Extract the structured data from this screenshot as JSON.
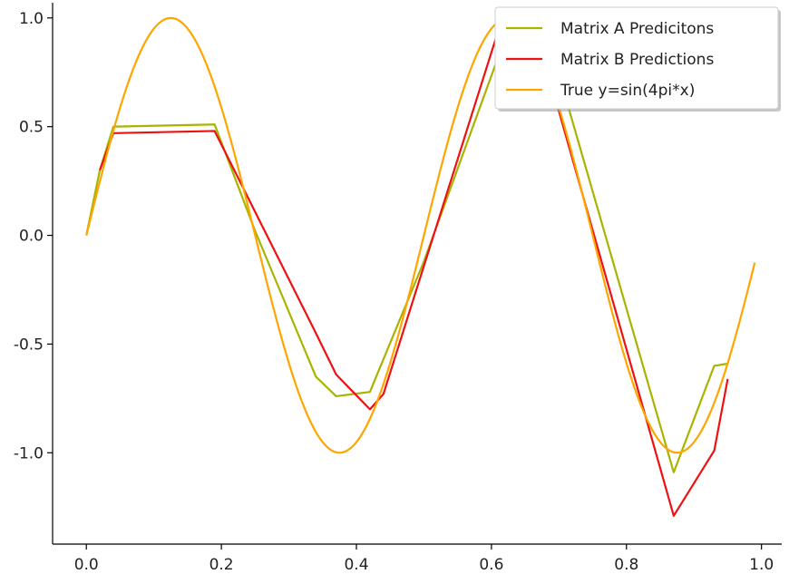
{
  "chart_data": {
    "type": "line",
    "title": "",
    "xlabel": "",
    "ylabel": "",
    "xlim": [
      -0.05,
      1.03
    ],
    "ylim": [
      -1.42,
      1.07
    ],
    "grid": false,
    "legend_placement": "top-right",
    "xticks": [
      0.0,
      0.2,
      0.4,
      0.6,
      0.8,
      1.0
    ],
    "xtick_labels": [
      "0.0",
      "0.2",
      "0.4",
      "0.6",
      "0.8",
      "1.0"
    ],
    "yticks": [
      1.0,
      0.5,
      0.0,
      -0.5,
      -1.0
    ],
    "ytick_labels": [
      "1.0",
      "0.5",
      "0.0",
      "-0.5",
      "-1.0"
    ],
    "series": [
      {
        "name": "Matrix A Predicitons",
        "color": "#a8b400",
        "x": [
          0.0,
          0.02,
          0.04,
          0.19,
          0.25,
          0.34,
          0.37,
          0.42,
          0.5,
          0.61,
          0.7,
          0.87,
          0.93,
          0.95
        ],
        "y": [
          0.0,
          0.3,
          0.5,
          0.51,
          0.02,
          -0.65,
          -0.74,
          -0.72,
          -0.12,
          0.82,
          0.74,
          -1.09,
          -0.6,
          -0.59
        ]
      },
      {
        "name": "Matrix B Predictions",
        "color": "#ee1111",
        "x": [
          0.02,
          0.04,
          0.19,
          0.34,
          0.37,
          0.42,
          0.44,
          0.61,
          0.69,
          0.87,
          0.93,
          0.95
        ],
        "y": [
          0.3,
          0.47,
          0.48,
          -0.45,
          -0.64,
          -0.8,
          -0.73,
          0.94,
          0.68,
          -1.29,
          -0.99,
          -0.66
        ]
      },
      {
        "name": "True y=sin(4pi*x)",
        "color": "#ffa500",
        "function": "sin(4*pi*x)",
        "x_range": [
          0.0,
          0.99
        ]
      }
    ]
  }
}
